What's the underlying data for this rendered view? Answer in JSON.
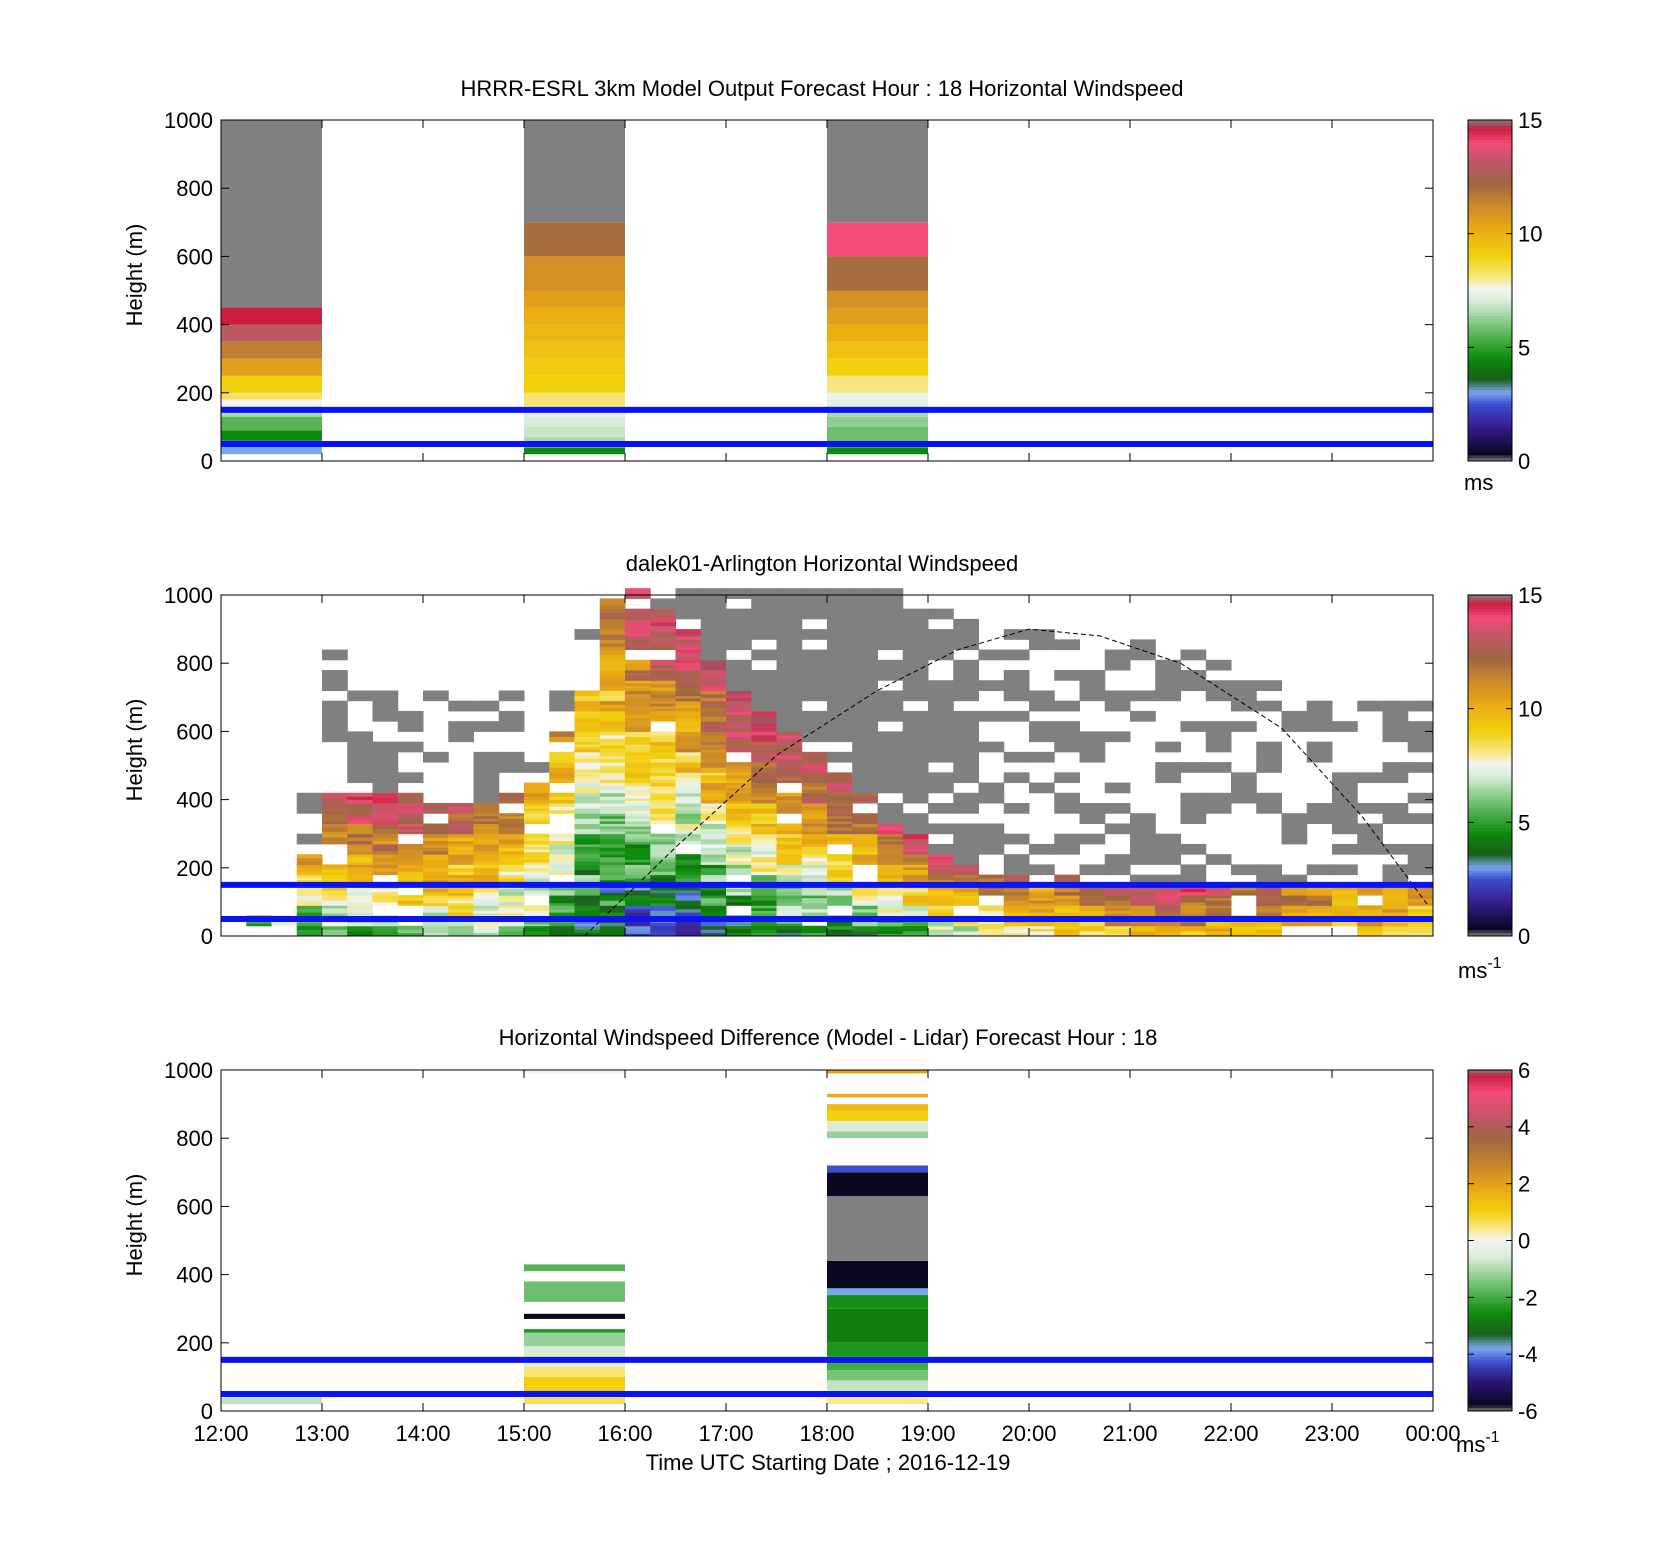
{
  "figure": {
    "xlabel": "Time UTC  Starting Date ; 2016-12-19",
    "xticks": [
      "12:00",
      "13:00",
      "14:00",
      "15:00",
      "16:00",
      "17:00",
      "18:00",
      "19:00",
      "20:00",
      "21:00",
      "22:00",
      "23:00",
      "00:00"
    ]
  },
  "colors": {
    "speed_scale": [
      [
        0,
        "#808080"
      ],
      [
        0.3,
        "#080820"
      ],
      [
        1.5,
        "#3a1c8e"
      ],
      [
        2.5,
        "#3a4fd0"
      ],
      [
        3.0,
        "#7aa6f0"
      ],
      [
        3.6,
        "#1a5f1a"
      ],
      [
        4.5,
        "#0b8a0b"
      ],
      [
        5.8,
        "#6cbf6c"
      ],
      [
        7.0,
        "#d8ecd8"
      ],
      [
        7.6,
        "#f4f4f4"
      ],
      [
        8.0,
        "#f7e88a"
      ],
      [
        9.0,
        "#f2d00e"
      ],
      [
        10.2,
        "#eba914"
      ],
      [
        11.3,
        "#c8862d"
      ],
      [
        12.2,
        "#9e6742"
      ],
      [
        13.2,
        "#c05868"
      ],
      [
        14.0,
        "#f44a78"
      ],
      [
        14.6,
        "#cc1d40"
      ],
      [
        15,
        "#808080"
      ]
    ],
    "diff_scale": [
      [
        -6,
        "#808080"
      ],
      [
        -5.8,
        "#080820"
      ],
      [
        -5.0,
        "#2a1470"
      ],
      [
        -4.3,
        "#3a4fd0"
      ],
      [
        -3.8,
        "#7aa6f0"
      ],
      [
        -3.3,
        "#1a5f1a"
      ],
      [
        -2.6,
        "#0b8a0b"
      ],
      [
        -1.6,
        "#6cbf6c"
      ],
      [
        -0.6,
        "#d8ecd8"
      ],
      [
        0,
        "#f4f4f4"
      ],
      [
        0.4,
        "#f7e88a"
      ],
      [
        1.0,
        "#f2d00e"
      ],
      [
        1.8,
        "#eba914"
      ],
      [
        2.6,
        "#c8862d"
      ],
      [
        3.6,
        "#9e6742"
      ],
      [
        4.3,
        "#c05868"
      ],
      [
        5.2,
        "#f44a78"
      ],
      [
        5.8,
        "#cc1d40"
      ],
      [
        6,
        "#808080"
      ]
    ],
    "no_data": "#808080",
    "reference_line": "#0a14f0",
    "solar_curve": "#000000"
  },
  "chart_data": [
    {
      "type": "heatmap",
      "title": "HRRR-ESRL 3km Model Output   Forecast Hour : 18 Horizontal Windspeed",
      "xlabel": "",
      "ylabel": "Height (m)",
      "xlim": [
        12,
        24
      ],
      "ylim": [
        0,
        1000
      ],
      "yticks": [
        "0",
        "200",
        "400",
        "600",
        "800",
        "1000"
      ],
      "colorbar": {
        "range": [
          0,
          15
        ],
        "ticks": [
          "0",
          "5",
          "10",
          "15"
        ],
        "unit": "ms"
      },
      "reference_lines_m": [
        50,
        150
      ],
      "columns": [
        {
          "x0": 12,
          "x1": 13,
          "layers": [
            [
              20,
              40,
              3.0
            ],
            [
              40,
              60,
              2.8
            ],
            [
              60,
              90,
              4.5
            ],
            [
              90,
              130,
              5.5
            ],
            [
              130,
              160,
              6.5
            ],
            [
              160,
              180,
              7.6
            ],
            [
              180,
              200,
              8.3
            ],
            [
              200,
              250,
              9.0
            ],
            [
              250,
              300,
              10.5
            ],
            [
              300,
              350,
              11.5
            ],
            [
              350,
              400,
              13.0
            ],
            [
              400,
              450,
              14.6
            ],
            [
              450,
              1000,
              0
            ]
          ]
        },
        {
          "x0": 15,
          "x1": 16,
          "layers": [
            [
              20,
              40,
              4.5
            ],
            [
              40,
              70,
              6.5
            ],
            [
              70,
              100,
              6.8
            ],
            [
              100,
              130,
              7.0
            ],
            [
              130,
              160,
              7.3
            ],
            [
              160,
              200,
              8.2
            ],
            [
              200,
              250,
              9.0
            ],
            [
              250,
              300,
              9.2
            ],
            [
              300,
              350,
              9.5
            ],
            [
              350,
              400,
              9.8
            ],
            [
              400,
              450,
              10.0
            ],
            [
              450,
              500,
              10.5
            ],
            [
              500,
              600,
              11.0
            ],
            [
              600,
              700,
              12.0
            ],
            [
              700,
              1000,
              0
            ]
          ]
        },
        {
          "x0": 18,
          "x1": 19,
          "layers": [
            [
              20,
              40,
              4.5
            ],
            [
              40,
              60,
              5.5
            ],
            [
              60,
              100,
              5.8
            ],
            [
              100,
              130,
              6.2
            ],
            [
              130,
              160,
              6.5
            ],
            [
              160,
              180,
              7.3
            ],
            [
              180,
              200,
              7.4
            ],
            [
              200,
              250,
              8.1
            ],
            [
              250,
              300,
              9.0
            ],
            [
              300,
              350,
              9.5
            ],
            [
              350,
              400,
              10.0
            ],
            [
              400,
              450,
              10.5
            ],
            [
              450,
              500,
              11.0
            ],
            [
              500,
              600,
              12.0
            ],
            [
              600,
              700,
              14.0
            ],
            [
              700,
              1000,
              0
            ]
          ]
        }
      ]
    },
    {
      "type": "heatmap",
      "title": "dalek01-Arlington  Horizontal Windspeed",
      "xlabel": "",
      "ylabel": "Height (m)",
      "xlim": [
        12,
        24
      ],
      "ylim": [
        0,
        1000
      ],
      "yticks": [
        "0",
        "200",
        "400",
        "600",
        "800",
        "1000"
      ],
      "colorbar": {
        "range": [
          0,
          15
        ],
        "ticks": [
          "0",
          "5",
          "10",
          "15"
        ],
        "unit": "ms",
        "unit_exponent": "-1"
      },
      "reference_lines_m": [
        50,
        150
      ],
      "solar_elevation_curve": {
        "x": [
          15.6,
          16.5,
          17.5,
          18.5,
          19.3,
          20.0,
          20.7,
          21.5,
          22.5,
          23.3,
          24.0
        ],
        "y": [
          0,
          260,
          530,
          720,
          840,
          900,
          880,
          800,
          610,
          350,
          70
        ]
      },
      "sampling": {
        "x_step_hours": 0.25,
        "y_step_m": 30
      },
      "profile": {
        "x": [
          12.0,
          12.5,
          13.0,
          13.5,
          14.0,
          14.5,
          15.0,
          15.5,
          15.75,
          16.0,
          16.5,
          17.0,
          17.5,
          18.0,
          18.5,
          19.0,
          19.5,
          20.0,
          21.0,
          22.0,
          23.0,
          24.0
        ],
        "top_m": [
          50,
          60,
          420,
          420,
          390,
          380,
          450,
          700,
          1000,
          1000,
          900,
          700,
          580,
          500,
          330,
          230,
          170,
          160,
          140,
          130,
          130,
          120
        ],
        "near_surface_speed": [
          3.0,
          3.5,
          5.5,
          6.0,
          6.5,
          7.0,
          6.0,
          3.5,
          3.0,
          2.0,
          2.5,
          3.5,
          4.0,
          4.5,
          5.0,
          6.0,
          7.5,
          8.0,
          9.5,
          10.0,
          9.5,
          9.0
        ],
        "top_speed": [
          4.0,
          9.0,
          14.0,
          14.5,
          13.5,
          12.0,
          11.0,
          10.0,
          12.5,
          14.5,
          14.0,
          14.5,
          14.5,
          14.0,
          14.0,
          14.0,
          13.0,
          11.5,
          14.5,
          12.5,
          11.0,
          10.5
        ],
        "cloud_top_m": [
          60,
          60,
          820,
          750,
          700,
          680,
          750,
          900,
          1000,
          1000,
          1000,
          1000,
          1000,
          1000,
          1000,
          950,
          900,
          880,
          850,
          800,
          700,
          650
        ]
      }
    },
    {
      "type": "heatmap",
      "title": "Horizontal Windspeed Difference (Model - Lidar) Forecast Hour : 18",
      "xlabel": "Time UTC  Starting Date ; 2016-12-19",
      "ylabel": "Height (m)",
      "xlim": [
        12,
        24
      ],
      "ylim": [
        0,
        1000
      ],
      "yticks": [
        "0",
        "200",
        "400",
        "600",
        "800",
        "1000"
      ],
      "xticks": [
        "12:00",
        "13:00",
        "14:00",
        "15:00",
        "16:00",
        "17:00",
        "18:00",
        "19:00",
        "20:00",
        "21:00",
        "22:00",
        "23:00",
        "00:00"
      ],
      "colorbar": {
        "range": [
          -6,
          6
        ],
        "ticks": [
          "-6",
          "-4",
          "-2",
          "0",
          "2",
          "4",
          "6"
        ],
        "unit": "ms",
        "unit_exponent": "-1"
      },
      "reference_lines_m": [
        50,
        150
      ],
      "columns": [
        {
          "x0": 12,
          "x1": 13,
          "layers": [
            [
              20,
              40,
              -0.8
            ]
          ]
        },
        {
          "x0": 15,
          "x1": 16,
          "layers": [
            [
              20,
              40,
              0.6
            ],
            [
              40,
              60,
              1.4
            ],
            [
              60,
              100,
              1.0
            ],
            [
              100,
              130,
              0.5
            ],
            [
              130,
              160,
              -0.3
            ],
            [
              160,
              190,
              -0.6
            ],
            [
              190,
              230,
              -1.2
            ],
            [
              230,
              240,
              -2.4
            ],
            [
              270,
              285,
              -5.8
            ],
            [
              320,
              380,
              -1.6
            ],
            [
              410,
              430,
              -1.8
            ],
            [
              990,
              1000,
              0
            ]
          ]
        },
        {
          "x0": 18,
          "x1": 19,
          "layers": [
            [
              20,
              40,
              0.4
            ],
            [
              40,
              60,
              -0.4
            ],
            [
              60,
              90,
              -0.8
            ],
            [
              90,
              120,
              -1.5
            ],
            [
              120,
              160,
              -2.0
            ],
            [
              160,
              200,
              -2.4
            ],
            [
              200,
              300,
              -2.8
            ],
            [
              300,
              340,
              -2.5
            ],
            [
              340,
              360,
              -3.8
            ],
            [
              360,
              440,
              -5.8
            ],
            [
              440,
              630,
              -6
            ],
            [
              630,
              700,
              -5.8
            ],
            [
              700,
              720,
              -4.3
            ],
            [
              800,
              820,
              -1.2
            ],
            [
              820,
              850,
              -0.6
            ],
            [
              850,
              880,
              1.0
            ],
            [
              880,
              900,
              1.4
            ],
            [
              920,
              930,
              1.8
            ],
            [
              990,
              1000,
              2.0
            ]
          ]
        }
      ]
    }
  ]
}
